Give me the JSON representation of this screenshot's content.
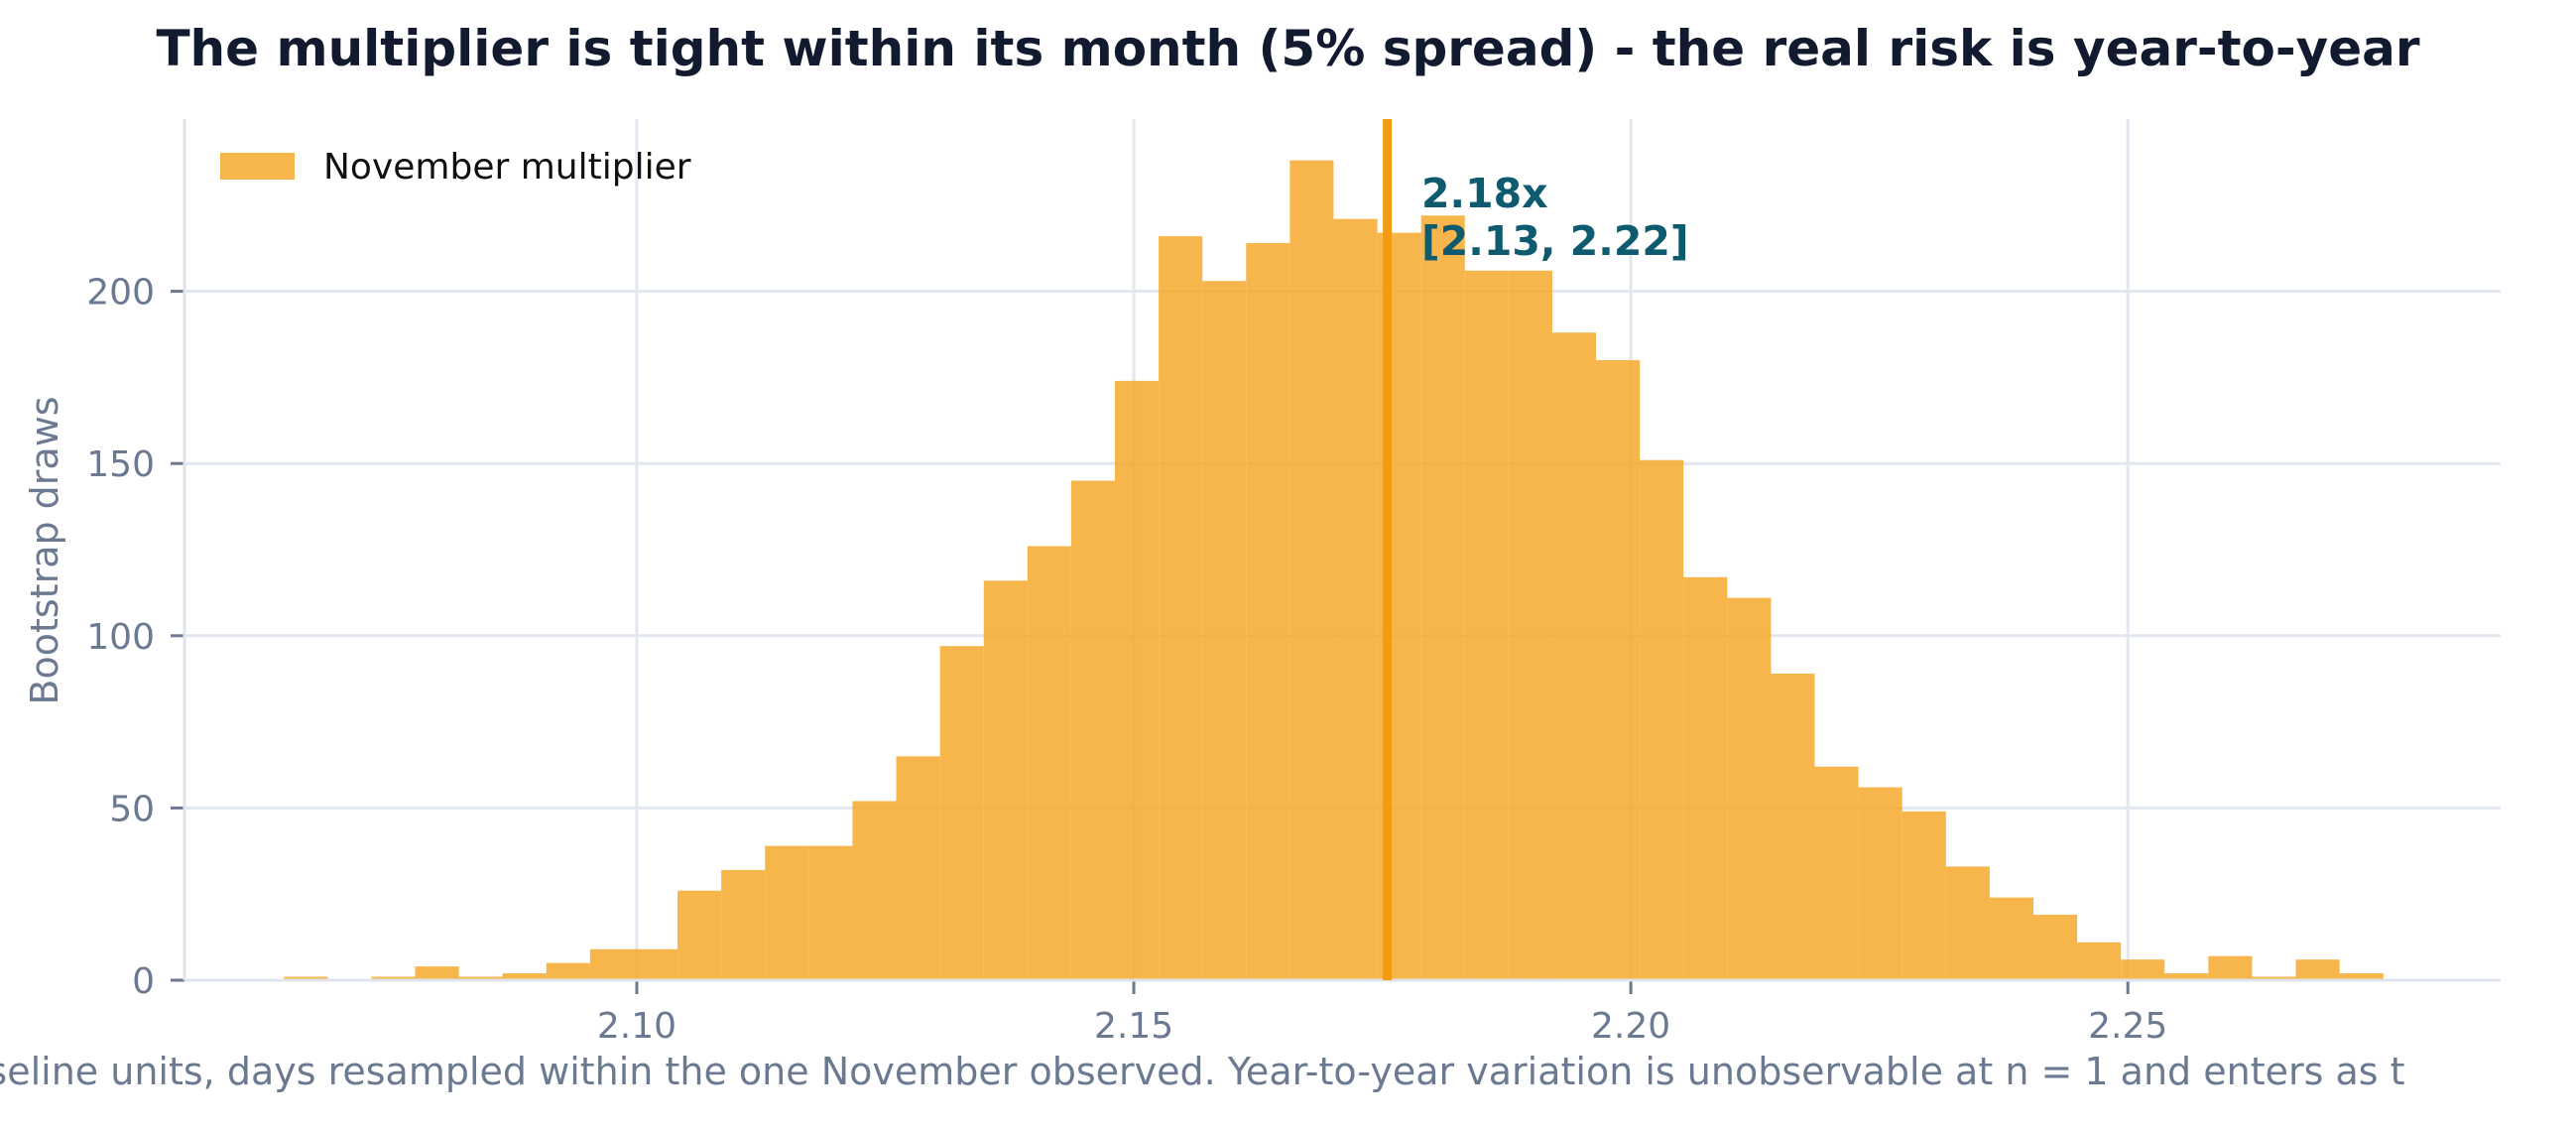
{
  "chart_data": {
    "type": "bar",
    "title": "The multiplier is tight within its month (5% spread) - the real risk is year-to-year",
    "xlabel": "",
    "ylabel": "Bootstrap draws",
    "xlim": [
      2.0545,
      2.2875
    ],
    "ylim": [
      0,
      250
    ],
    "x_ticks": [
      "2.10",
      "2.15",
      "2.20",
      "2.25"
    ],
    "y_ticks": [
      "0",
      "50",
      "100",
      "150",
      "200"
    ],
    "grid": true,
    "legend": {
      "position": "top-left",
      "entries": [
        "November multiplier"
      ]
    },
    "bar_color": "#f5a623",
    "median_line_color": "#f39c12",
    "annotation_color": "#0e5a6e",
    "bin_width": 0.0044,
    "bins": {
      "x_start": [
        2.0645,
        2.0689,
        2.0733,
        2.0777,
        2.0821,
        2.0865,
        2.0909,
        2.0953,
        2.0997,
        2.1041,
        2.1085,
        2.1129,
        2.1173,
        2.1217,
        2.1261,
        2.1305,
        2.1349,
        2.1393,
        2.1437,
        2.1481,
        2.1525,
        2.1569,
        2.1613,
        2.1657,
        2.1701,
        2.1745,
        2.1789,
        2.1833,
        2.1877,
        2.1921,
        2.1965,
        2.2009,
        2.2053,
        2.2097,
        2.2141,
        2.2185,
        2.2229,
        2.2273,
        2.2317,
        2.2361,
        2.2405,
        2.2449,
        2.2493,
        2.2537,
        2.2581,
        2.2625,
        2.2669,
        2.2713
      ],
      "counts": [
        1,
        0,
        1,
        4,
        1,
        2,
        5,
        9,
        9,
        26,
        32,
        39,
        39,
        52,
        65,
        97,
        116,
        126,
        145,
        174,
        216,
        203,
        214,
        238,
        221,
        217,
        222,
        206,
        206,
        188,
        180,
        151,
        117,
        111,
        89,
        62,
        56,
        49,
        33,
        24,
        19,
        11,
        6,
        2,
        7,
        1,
        6,
        2
      ]
    },
    "median": 2.1755,
    "annotation": {
      "value_label": "2.18x",
      "ci_label": "[2.13, 2.22]"
    },
    "caption": "baseline units, days resampled within the one November observed. Year-to-year variation is unobservable at n = 1 and enters as t"
  }
}
